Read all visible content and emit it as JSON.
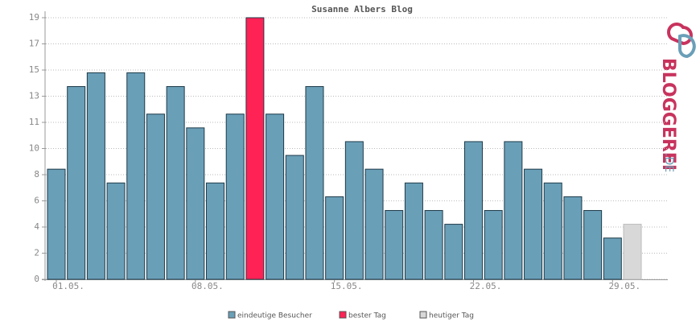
{
  "chart_data": {
    "type": "bar",
    "title": "Susanne Albers Blog",
    "categories": [
      "01.05.",
      null,
      null,
      null,
      null,
      null,
      null,
      "08.05.",
      null,
      null,
      null,
      null,
      null,
      null,
      "15.05.",
      null,
      null,
      null,
      null,
      null,
      null,
      "22.05.",
      null,
      null,
      null,
      null,
      null,
      null,
      "29.05.",
      null
    ],
    "series": [
      {
        "name": "eindeutige Besucher",
        "color": "#6a9fb8",
        "values": [
          8,
          14,
          15,
          7,
          15,
          12,
          14,
          11,
          7,
          12,
          null,
          12,
          9,
          14,
          6,
          10,
          8,
          5,
          7,
          5,
          4,
          10,
          5,
          10,
          8,
          7,
          6,
          5,
          3,
          null
        ]
      },
      {
        "name": "bester Tag",
        "color": "#ff2255",
        "values": [
          null,
          null,
          null,
          null,
          null,
          null,
          null,
          null,
          null,
          null,
          19,
          null,
          null,
          null,
          null,
          null,
          null,
          null,
          null,
          null,
          null,
          null,
          null,
          null,
          null,
          null,
          null,
          null,
          null,
          null
        ]
      },
      {
        "name": "heutiger Tag",
        "color": "#d8d8d8",
        "values": [
          null,
          null,
          null,
          null,
          null,
          null,
          null,
          null,
          null,
          null,
          null,
          null,
          null,
          null,
          null,
          null,
          null,
          null,
          null,
          null,
          null,
          null,
          null,
          null,
          null,
          null,
          null,
          null,
          null,
          4
        ]
      }
    ],
    "ylim": [
      0,
      19
    ],
    "yticks": [
      0,
      {
        "value": 1.9,
        "label": "2"
      },
      {
        "value": 3.8,
        "label": "4"
      },
      {
        "value": 5.7,
        "label": "6"
      },
      {
        "value": 7.6,
        "label": "8"
      },
      {
        "value": 9.5,
        "label": "10"
      },
      {
        "value": 11.4,
        "label": "11"
      },
      {
        "value": 13.3,
        "label": "13"
      },
      {
        "value": 15.2,
        "label": "15"
      },
      {
        "value": 17.1,
        "label": "17"
      },
      19
    ],
    "grid": true
  },
  "logo": {
    "name": "BLOGGEREI",
    "domain": ".DE"
  }
}
